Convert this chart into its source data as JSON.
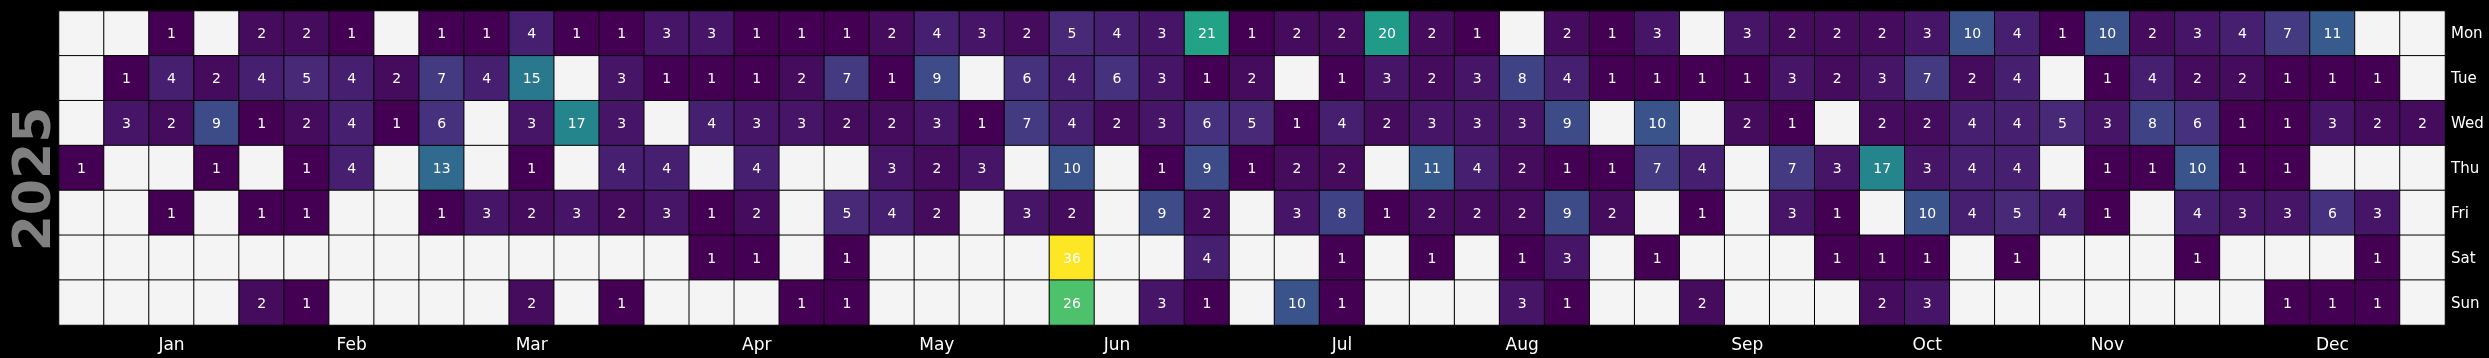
{
  "chart_data": {
    "type": "heatmap",
    "ylabel": "2025",
    "data_labels": true,
    "categories": [
      null,
      null,
      "Jan",
      null,
      null,
      null,
      "Feb",
      null,
      null,
      null,
      "Mar",
      null,
      null,
      null,
      null,
      "Apr",
      null,
      null,
      null,
      "May",
      null,
      null,
      null,
      "Jun",
      null,
      null,
      null,
      null,
      "Jul",
      null,
      null,
      null,
      "Aug",
      null,
      null,
      null,
      null,
      "Sep",
      null,
      null,
      null,
      "Oct",
      null,
      null,
      null,
      "Nov",
      null,
      null,
      null,
      null,
      "Dec",
      null,
      null
    ],
    "y_categories": [
      "Mon",
      "Tue",
      "Wed",
      "Thu",
      "Fri",
      "Sat",
      "Sun"
    ],
    "cells": [
      [
        null,
        null,
        1,
        null,
        2,
        2,
        1,
        null,
        1,
        1,
        4,
        1,
        1,
        3,
        3,
        1,
        1,
        1,
        2,
        4,
        3,
        2,
        5,
        4,
        3,
        21,
        1,
        2,
        2,
        20,
        2,
        1,
        null,
        2,
        1,
        3,
        null,
        3,
        2,
        2,
        2,
        3,
        10,
        4,
        1,
        10,
        2,
        3,
        4,
        7,
        11,
        null,
        null
      ],
      [
        null,
        1,
        4,
        2,
        4,
        5,
        4,
        2,
        7,
        4,
        15,
        null,
        3,
        1,
        1,
        1,
        2,
        7,
        1,
        9,
        null,
        6,
        4,
        6,
        3,
        1,
        2,
        null,
        1,
        3,
        2,
        3,
        8,
        4,
        1,
        1,
        1,
        1,
        3,
        2,
        3,
        7,
        2,
        4,
        null,
        1,
        4,
        2,
        2,
        1,
        1,
        1,
        null
      ],
      [
        null,
        3,
        2,
        9,
        1,
        2,
        4,
        1,
        6,
        null,
        3,
        17,
        3,
        null,
        4,
        3,
        3,
        2,
        2,
        3,
        1,
        7,
        4,
        2,
        3,
        6,
        5,
        1,
        4,
        2,
        3,
        3,
        3,
        9,
        null,
        10,
        null,
        2,
        1,
        null,
        2,
        2,
        4,
        4,
        5,
        3,
        8,
        6,
        1,
        1,
        3,
        2,
        2
      ],
      [
        1,
        null,
        null,
        1,
        null,
        1,
        4,
        null,
        13,
        null,
        1,
        null,
        4,
        4,
        null,
        4,
        null,
        null,
        3,
        2,
        3,
        null,
        10,
        null,
        1,
        9,
        1,
        2,
        2,
        null,
        11,
        4,
        2,
        1,
        1,
        7,
        4,
        null,
        7,
        3,
        17,
        3,
        4,
        4,
        null,
        1,
        1,
        10,
        1,
        1,
        null,
        null,
        null
      ],
      [
        null,
        null,
        1,
        null,
        1,
        1,
        null,
        null,
        1,
        3,
        2,
        3,
        2,
        3,
        1,
        2,
        null,
        5,
        4,
        2,
        null,
        3,
        2,
        null,
        9,
        2,
        null,
        3,
        8,
        1,
        2,
        2,
        2,
        9,
        2,
        null,
        1,
        null,
        3,
        1,
        null,
        10,
        4,
        5,
        4,
        1,
        null,
        4,
        3,
        3,
        6,
        3,
        null
      ],
      [
        null,
        null,
        null,
        null,
        null,
        null,
        null,
        null,
        null,
        null,
        null,
        null,
        null,
        null,
        1,
        1,
        null,
        1,
        null,
        null,
        null,
        null,
        36,
        null,
        null,
        4,
        null,
        null,
        1,
        null,
        1,
        null,
        1,
        3,
        null,
        1,
        null,
        null,
        null,
        1,
        1,
        1,
        null,
        1,
        null,
        null,
        null,
        1,
        null,
        null,
        null,
        1,
        null
      ],
      [
        null,
        null,
        null,
        null,
        2,
        1,
        null,
        null,
        null,
        null,
        2,
        null,
        1,
        null,
        null,
        null,
        1,
        1,
        null,
        null,
        null,
        null,
        26,
        null,
        3,
        1,
        null,
        10,
        1,
        null,
        null,
        null,
        3,
        1,
        null,
        null,
        2,
        null,
        null,
        null,
        2,
        3,
        null,
        null,
        null,
        null,
        null,
        null,
        null,
        1,
        1,
        1,
        null
      ]
    ]
  }
}
